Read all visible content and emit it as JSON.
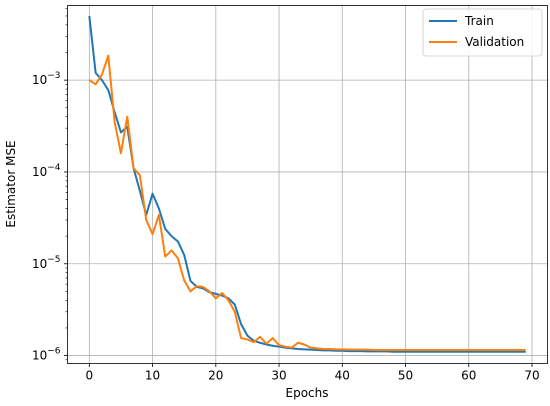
{
  "chart_data": {
    "type": "line",
    "xlabel": "Epochs",
    "ylabel": "Estimator MSE",
    "xlim": [
      -3.45,
      72.45
    ],
    "ylim": [
      8.2e-07,
      0.0065
    ],
    "yscale": "log",
    "xticks": [
      0,
      10,
      20,
      30,
      40,
      50,
      60,
      70
    ],
    "yticks": [
      {
        "value": 1e-06,
        "label": "10",
        "exp": "−6"
      },
      {
        "value": 1e-05,
        "label": "10",
        "exp": "−5"
      },
      {
        "value": 0.0001,
        "label": "10",
        "exp": "−4"
      },
      {
        "value": 0.001,
        "label": "10",
        "exp": "−3"
      }
    ],
    "grid": true,
    "legend_position": "top-right",
    "x": [
      0,
      1,
      2,
      3,
      4,
      5,
      6,
      7,
      8,
      9,
      10,
      11,
      12,
      13,
      14,
      15,
      16,
      17,
      18,
      19,
      20,
      21,
      22,
      23,
      24,
      25,
      26,
      27,
      28,
      29,
      30,
      31,
      32,
      33,
      34,
      35,
      36,
      37,
      38,
      39,
      40,
      41,
      42,
      43,
      44,
      45,
      46,
      47,
      48,
      49,
      50,
      51,
      52,
      53,
      54,
      55,
      56,
      57,
      58,
      59,
      60,
      61,
      62,
      63,
      64,
      65,
      66,
      67,
      68,
      69
    ],
    "series": [
      {
        "name": "Train",
        "color": "#1f77b4",
        "values": [
          0.005,
          0.0012,
          0.001,
          0.00078,
          0.00045,
          0.00027,
          0.00031,
          0.00011,
          6.2e-05,
          3.4e-05,
          5.8e-05,
          4e-05,
          2.4e-05,
          2e-05,
          1.75e-05,
          1.25e-05,
          6.5e-06,
          5.6e-06,
          5.4e-06,
          4.9e-06,
          4.7e-06,
          4.5e-06,
          4.2e-06,
          3.6e-06,
          2.2e-06,
          1.65e-06,
          1.45e-06,
          1.38e-06,
          1.32e-06,
          1.28e-06,
          1.25e-06,
          1.22e-06,
          1.2e-06,
          1.18e-06,
          1.17e-06,
          1.16e-06,
          1.15e-06,
          1.14e-06,
          1.14e-06,
          1.13e-06,
          1.13e-06,
          1.12e-06,
          1.12e-06,
          1.12e-06,
          1.11e-06,
          1.11e-06,
          1.11e-06,
          1.11e-06,
          1.1e-06,
          1.1e-06,
          1.1e-06,
          1.1e-06,
          1.1e-06,
          1.1e-06,
          1.1e-06,
          1.1e-06,
          1.1e-06,
          1.1e-06,
          1.1e-06,
          1.1e-06,
          1.1e-06,
          1.1e-06,
          1.1e-06,
          1.1e-06,
          1.1e-06,
          1.1e-06,
          1.1e-06,
          1.1e-06,
          1.1e-06,
          1.1e-06
        ]
      },
      {
        "name": "Validation",
        "color": "#ff7f0e",
        "values": [
          0.001,
          0.0009,
          0.00115,
          0.00185,
          0.00035,
          0.00016,
          0.0004,
          0.00011,
          9.2e-05,
          3e-05,
          2.1e-05,
          3.4e-05,
          1.2e-05,
          1.4e-05,
          1.15e-05,
          6.6e-06,
          5e-06,
          5.7e-06,
          5.6e-06,
          5e-06,
          4.2e-06,
          4.8e-06,
          4e-06,
          3e-06,
          1.55e-06,
          1.5e-06,
          1.4e-06,
          1.6e-06,
          1.35e-06,
          1.55e-06,
          1.3e-06,
          1.25e-06,
          1.22e-06,
          1.38e-06,
          1.32e-06,
          1.22e-06,
          1.2e-06,
          1.18e-06,
          1.18e-06,
          1.17e-06,
          1.17e-06,
          1.16e-06,
          1.16e-06,
          1.16e-06,
          1.16e-06,
          1.15e-06,
          1.15e-06,
          1.15e-06,
          1.15e-06,
          1.15e-06,
          1.15e-06,
          1.15e-06,
          1.15e-06,
          1.15e-06,
          1.15e-06,
          1.15e-06,
          1.15e-06,
          1.15e-06,
          1.15e-06,
          1.15e-06,
          1.15e-06,
          1.15e-06,
          1.15e-06,
          1.15e-06,
          1.15e-06,
          1.15e-06,
          1.15e-06,
          1.15e-06,
          1.15e-06,
          1.15e-06
        ]
      }
    ]
  }
}
